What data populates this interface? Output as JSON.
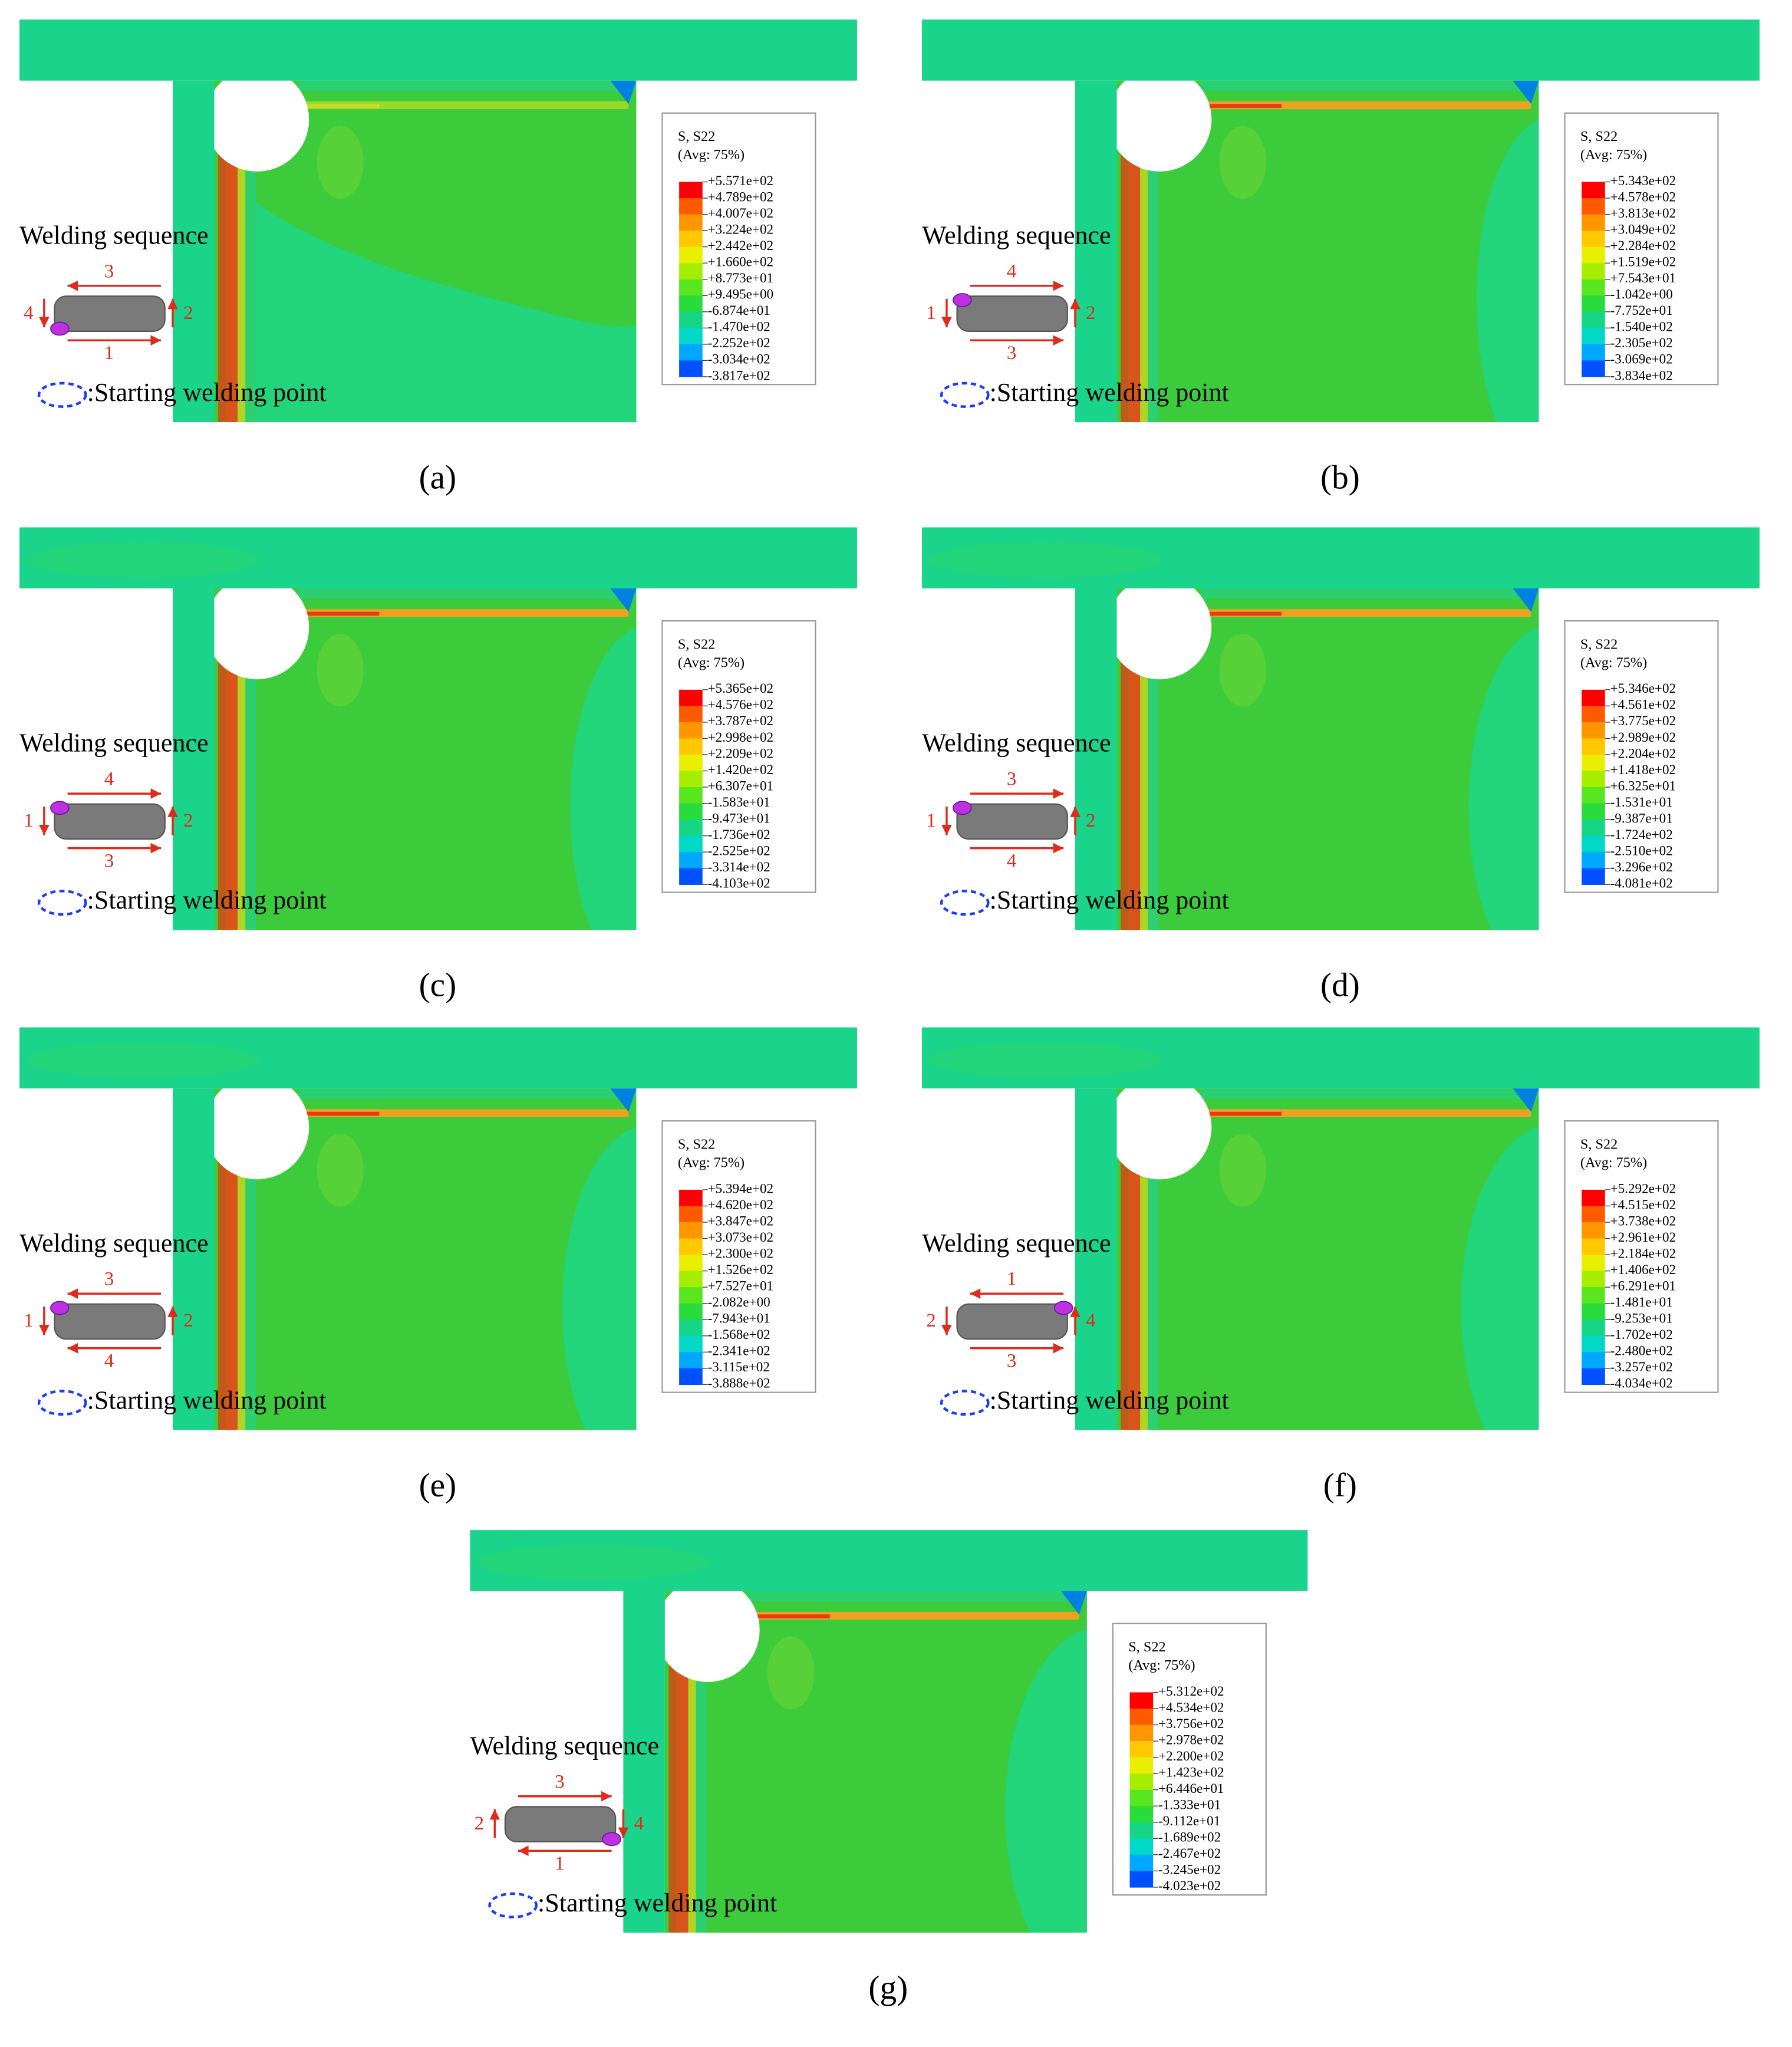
{
  "panels": [
    {
      "caption": "(a)",
      "legend": {
        "title": "S, S22",
        "subtitle": "(Avg: 75%)",
        "values": [
          "+5.571e+02",
          "+4.789e+02",
          "+4.007e+02",
          "+3.224e+02",
          "+2.442e+02",
          "+1.660e+02",
          "+8.773e+01",
          "+9.495e+00",
          "-6.874e+01",
          "-1.470e+02",
          "-2.252e+02",
          "-3.034e+02",
          "-3.817e+02"
        ]
      },
      "sequence": {
        "title": "Welding sequence",
        "top": "3",
        "bottom": "1",
        "left": "4",
        "right": "2",
        "note": ":Starting welding point"
      }
    },
    {
      "caption": "(b)",
      "legend": {
        "title": "S, S22",
        "subtitle": "(Avg: 75%)",
        "values": [
          "+5.343e+02",
          "+4.578e+02",
          "+3.813e+02",
          "+3.049e+02",
          "+2.284e+02",
          "+1.519e+02",
          "+7.543e+01",
          "-1.042e+00",
          "-7.752e+01",
          "-1.540e+02",
          "-2.305e+02",
          "-3.069e+02",
          "-3.834e+02"
        ]
      },
      "sequence": {
        "title": "Welding sequence",
        "top": "4",
        "bottom": "3",
        "left": "1",
        "right": "2",
        "note": ":Starting welding point"
      }
    },
    {
      "caption": "(c)",
      "legend": {
        "title": "S, S22",
        "subtitle": "(Avg: 75%)",
        "values": [
          "+5.365e+02",
          "+4.576e+02",
          "+3.787e+02",
          "+2.998e+02",
          "+2.209e+02",
          "+1.420e+02",
          "+6.307e+01",
          "-1.583e+01",
          "-9.473e+01",
          "-1.736e+02",
          "-2.525e+02",
          "-3.314e+02",
          "-4.103e+02"
        ]
      },
      "sequence": {
        "title": "Welding sequence",
        "top": "4",
        "bottom": "3",
        "left": "1",
        "right": "2",
        "note": ":Starting welding point"
      }
    },
    {
      "caption": "(d)",
      "legend": {
        "title": "S, S22",
        "subtitle": "(Avg: 75%)",
        "values": [
          "+5.346e+02",
          "+4.561e+02",
          "+3.775e+02",
          "+2.989e+02",
          "+2.204e+02",
          "+1.418e+02",
          "+6.325e+01",
          "-1.531e+01",
          "-9.387e+01",
          "-1.724e+02",
          "-2.510e+02",
          "-3.296e+02",
          "-4.081e+02"
        ]
      },
      "sequence": {
        "title": "Welding sequence",
        "top": "3",
        "bottom": "4",
        "left": "1",
        "right": "2",
        "note": ":Starting welding point"
      }
    },
    {
      "caption": "(e)",
      "legend": {
        "title": "S, S22",
        "subtitle": "(Avg: 75%)",
        "values": [
          "+5.394e+02",
          "+4.620e+02",
          "+3.847e+02",
          "+3.073e+02",
          "+2.300e+02",
          "+1.526e+02",
          "+7.527e+01",
          "-2.082e+00",
          "-7.943e+01",
          "-1.568e+02",
          "-2.341e+02",
          "-3.115e+02",
          "-3.888e+02"
        ]
      },
      "sequence": {
        "title": "Welding sequence",
        "top": "3",
        "bottom": "4",
        "left": "1",
        "right": "2",
        "note": ":Starting welding point"
      }
    },
    {
      "caption": "(f)",
      "legend": {
        "title": "S, S22",
        "subtitle": "(Avg: 75%)",
        "values": [
          "+5.292e+02",
          "+4.515e+02",
          "+3.738e+02",
          "+2.961e+02",
          "+2.184e+02",
          "+1.406e+02",
          "+6.291e+01",
          "-1.481e+01",
          "-9.253e+01",
          "-1.702e+02",
          "-2.480e+02",
          "-3.257e+02",
          "-4.034e+02"
        ]
      },
      "sequence": {
        "title": "Welding sequence",
        "top": "1",
        "bottom": "3",
        "left": "2",
        "right": "4",
        "note": ":Starting welding point"
      }
    },
    {
      "caption": "(g)",
      "legend": {
        "title": "S, S22",
        "subtitle": "(Avg: 75%)",
        "values": [
          "+5.312e+02",
          "+4.534e+02",
          "+3.756e+02",
          "+2.978e+02",
          "+2.200e+02",
          "+1.423e+02",
          "+6.446e+01",
          "-1.333e+01",
          "-9.112e+01",
          "-1.689e+02",
          "-2.467e+02",
          "-3.245e+02",
          "-4.023e+02"
        ]
      },
      "sequence": {
        "title": "Welding sequence",
        "top": "3",
        "bottom": "1",
        "left": "2",
        "right": "4",
        "note": ":Starting welding point"
      }
    }
  ]
}
